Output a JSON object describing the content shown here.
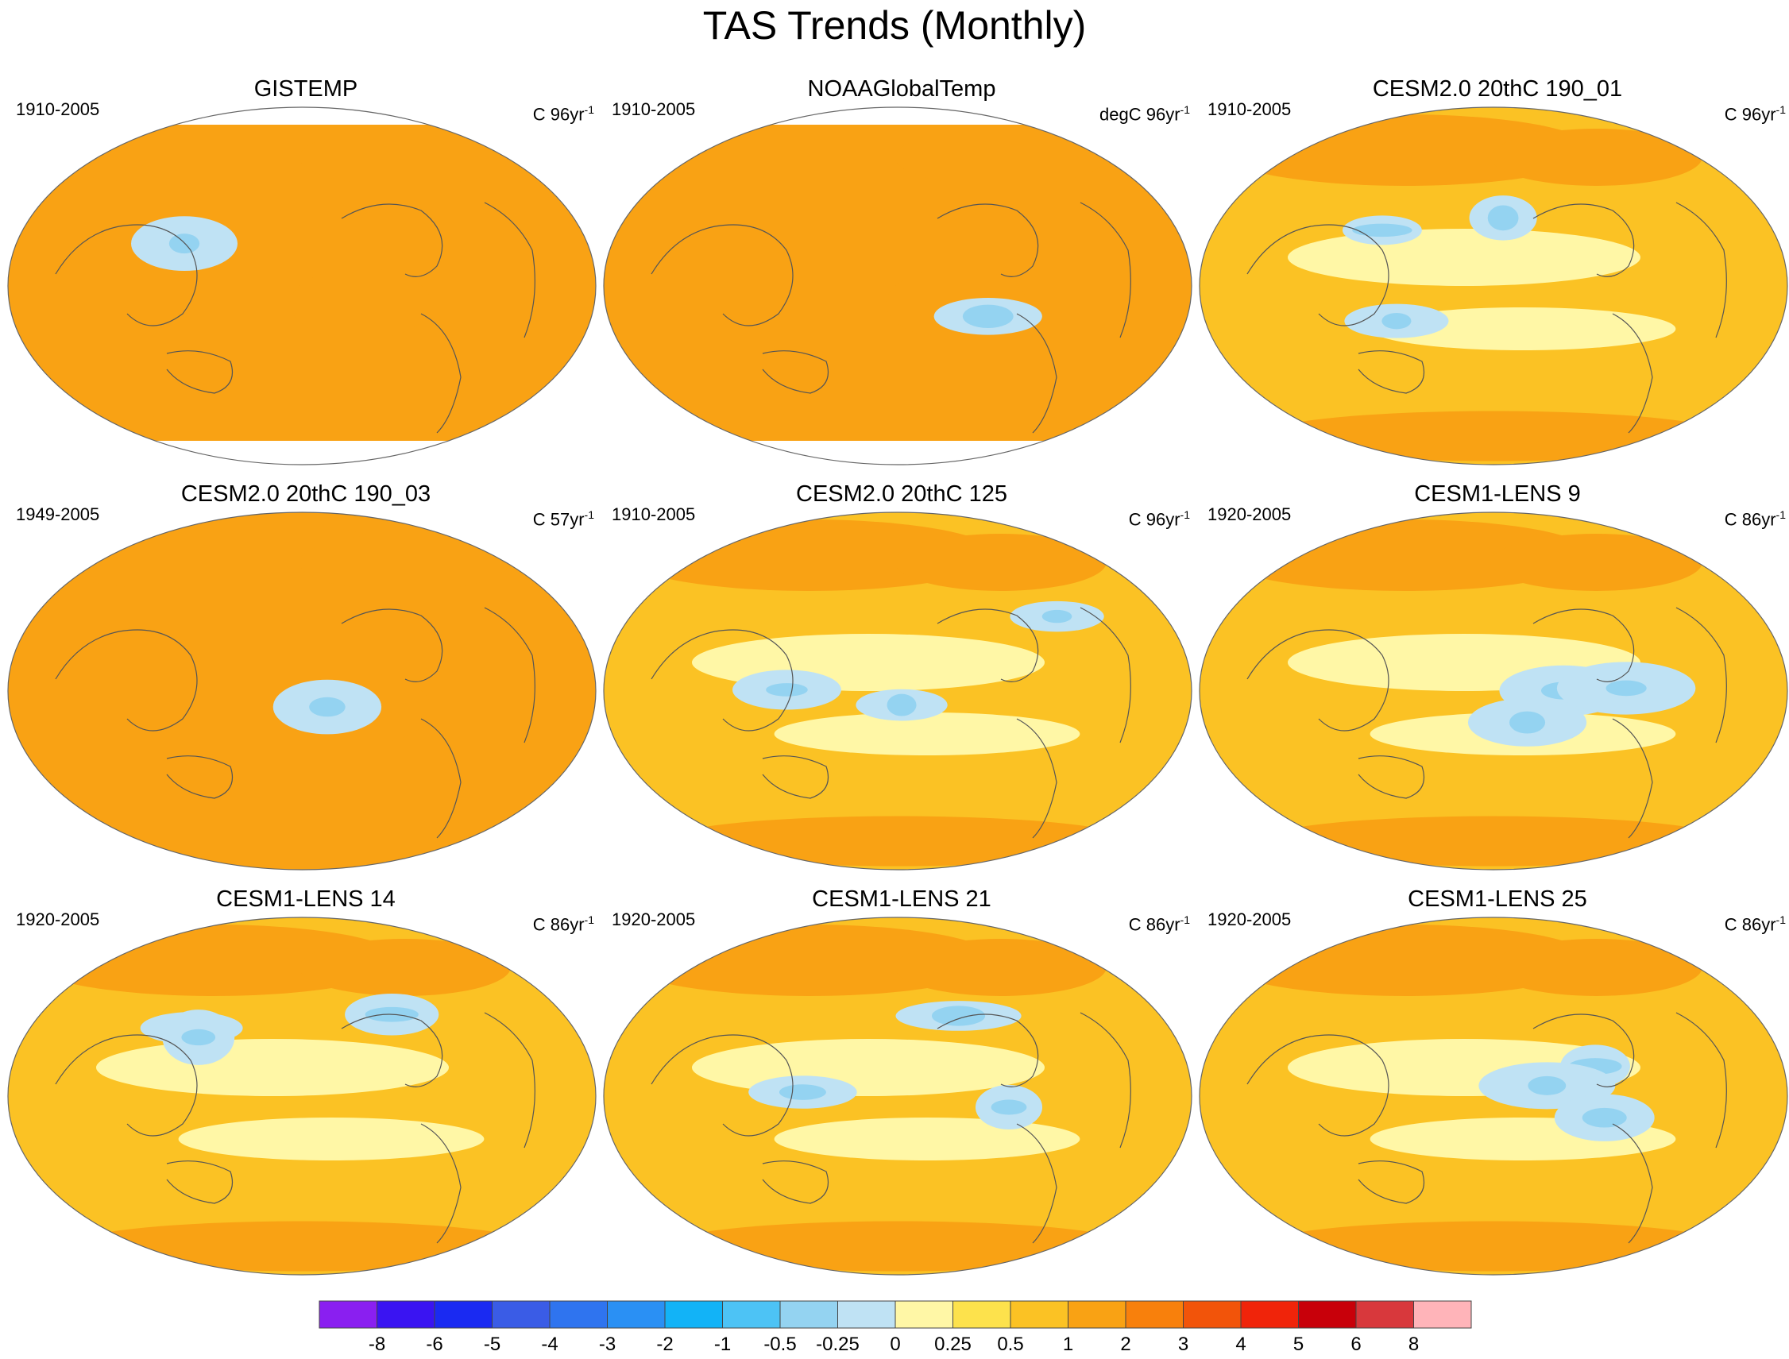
{
  "figure": {
    "title": "TAS Trends (Monthly)"
  },
  "chart_data": {
    "type": "heatmap",
    "title": "TAS Trends (Monthly)",
    "map_projection": "Robinson-like global, Pacific-centered",
    "panels": [
      {
        "title": "GISTEMP",
        "period": "1910-2005",
        "units": "C 96yr",
        "units_sup": "-1",
        "dominant_level": 1,
        "cool_region": "North Atlantic (weak)",
        "missing_poles": true
      },
      {
        "title": "NOAAGlobalTemp",
        "period": "1910-2005",
        "units": "degC 96yr",
        "units_sup": "-1",
        "dominant_level": 1,
        "cool_region": "North Atlantic (weak)",
        "missing_poles": true
      },
      {
        "title": "CESM2.0 20thC 190_01",
        "period": "1910-2005",
        "units": "C 96yr",
        "units_sup": "-1",
        "dominant_level": 0.5,
        "cool_region": "North Pacific and equatorial Pacific",
        "missing_poles": false
      },
      {
        "title": "CESM2.0 20thC 190_03",
        "period": "1949-2005",
        "units": "C 57yr",
        "units_sup": "-1",
        "dominant_level": 1,
        "cool_region": "South Pacific (weak)",
        "missing_poles": false
      },
      {
        "title": "CESM2.0 20thC 125",
        "period": "1910-2005",
        "units": "C 96yr",
        "units_sup": "-1",
        "dominant_level": 0.5,
        "cool_region": "North Atlantic and tropical Atlantic",
        "missing_poles": false
      },
      {
        "title": "CESM1-LENS 9",
        "period": "1920-2005",
        "units": "C 86yr",
        "units_sup": "-1",
        "dominant_level": 0.5,
        "cool_region": "South Asia and North Atlantic",
        "missing_poles": false
      },
      {
        "title": "CESM1-LENS 14",
        "period": "1920-2005",
        "units": "C 86yr",
        "units_sup": "-1",
        "dominant_level": 0.5,
        "cool_region": "North America and South Asia",
        "missing_poles": false
      },
      {
        "title": "CESM1-LENS 21",
        "period": "1920-2005",
        "units": "C 86yr",
        "units_sup": "-1",
        "dominant_level": 0.5,
        "cool_region": "North Pacific and East Asia",
        "missing_poles": false
      },
      {
        "title": "CESM1-LENS 25",
        "period": "1920-2005",
        "units": "C 86yr",
        "units_sup": "-1",
        "dominant_level": 0.5,
        "cool_region": "North Pacific and North Atlantic",
        "missing_poles": false
      }
    ],
    "colorbar": {
      "levels": [
        "-8",
        "-6",
        "-5",
        "-4",
        "-3",
        "-2",
        "-1",
        "-0.5",
        "-0.25",
        "0",
        "0.25",
        "0.5",
        "1",
        "2",
        "3",
        "4",
        "5",
        "6",
        "8"
      ],
      "colors": [
        "#8a1ff0",
        "#3a14f2",
        "#1a2af2",
        "#3a5ce6",
        "#2f74ef",
        "#2a90f4",
        "#12b3f7",
        "#4dc3f5",
        "#94d3f1",
        "#bfe2f4",
        "#fff7a6",
        "#fde24c",
        "#fbc224",
        "#f9a214",
        "#f8800c",
        "#f2540a",
        "#f0240a",
        "#c8000a",
        "#d8383c",
        "#ffb4b9"
      ]
    }
  }
}
